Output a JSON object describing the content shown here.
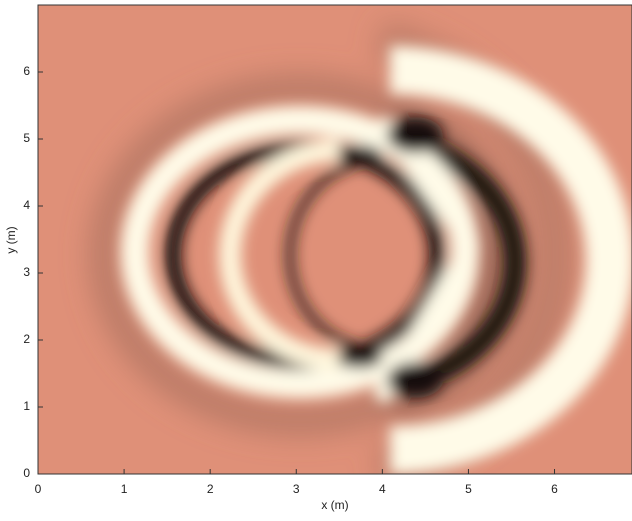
{
  "chart_data": {
    "type": "image",
    "xlabel": "x (m)",
    "ylabel": "y (m)",
    "xlim": [
      0,
      6.9
    ],
    "ylim": [
      0,
      7
    ],
    "xticks": [
      0,
      1,
      2,
      3,
      4,
      5,
      6
    ],
    "yticks": [
      0,
      1,
      2,
      3,
      4,
      5,
      6
    ],
    "background": "#df9078"
  }
}
